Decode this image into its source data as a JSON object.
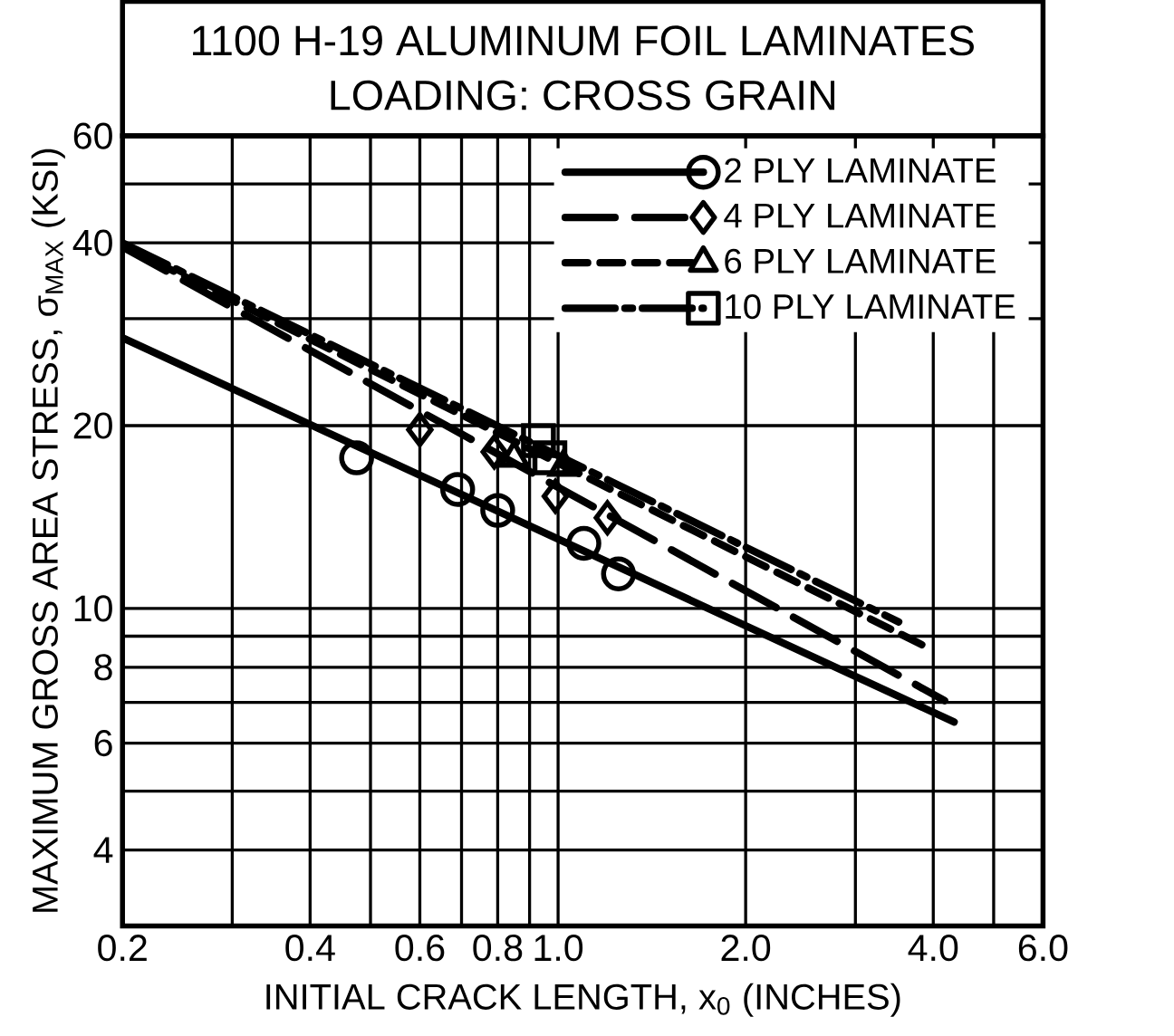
{
  "chart_data": {
    "type": "scatter",
    "title": "1100 H-19 ALUMINUM FOIL LAMINATES",
    "subtitle": "LOADING: CROSS GRAIN",
    "xlabel": "INITIAL CRACK LENGTH, x$_{0}$ (INCHES)",
    "ylabel": "MAXIMUM GROSS AREA STRESS, σ$_{MAX}$ (KSI)",
    "log": "xy",
    "grid": true,
    "legend": "top right",
    "xlim": [
      0.2,
      6.0
    ],
    "ylim": [
      3,
      60
    ],
    "xticks": [
      {
        "value": 0.2,
        "label": "0.2"
      },
      {
        "value": 0.3,
        "label": null
      },
      {
        "value": 0.4,
        "label": "0.4"
      },
      {
        "value": 0.5,
        "label": null
      },
      {
        "value": 0.6,
        "label": "0.6"
      },
      {
        "value": 0.7,
        "label": null
      },
      {
        "value": 0.8,
        "label": "0.8"
      },
      {
        "value": 0.9,
        "label": null
      },
      {
        "value": 1.0,
        "label": "1.0"
      },
      {
        "value": 2.0,
        "label": "2.0"
      },
      {
        "value": 3.0,
        "label": null
      },
      {
        "value": 4.0,
        "label": "4.0"
      },
      {
        "value": 5.0,
        "label": null
      },
      {
        "value": 6.0,
        "label": "6.0"
      }
    ],
    "yticks": [
      4,
      {
        "value": 5,
        "label": null
      },
      6,
      {
        "value": 7,
        "label": null
      },
      8,
      {
        "value": 9,
        "label": null
      },
      10,
      20,
      {
        "value": 30,
        "label": null
      },
      40,
      {
        "value": 50,
        "label": null
      },
      60
    ],
    "series": [
      {
        "type": "scatter",
        "marker": "circle",
        "color": "#000000",
        "x": [
          0.475,
          0.69,
          0.8,
          1.1,
          1.25
        ],
        "values": [
          17.7,
          15.7,
          14.5,
          12.8,
          11.4
        ]
      },
      {
        "type": "scatter",
        "marker": "diamond",
        "color": "#000000",
        "x": [
          0.6,
          0.79,
          0.99,
          1.2
        ],
        "values": [
          19.7,
          18.1,
          15.3,
          14.1
        ]
      },
      {
        "type": "scatter",
        "marker": "triangle",
        "color": "#000000",
        "x": [
          0.85,
          1.02
        ],
        "values": [
          17.7,
          17.1
        ]
      },
      {
        "type": "scatter",
        "marker": "square",
        "color": "#000000",
        "x": [
          0.93,
          0.97
        ],
        "values": [
          18.9,
          17.7
        ]
      },
      {
        "type": "line",
        "name": "2 PLY LAMINATE",
        "line_style": "solid",
        "color": "#000000",
        "x": [
          0.2,
          4.32
        ],
        "values": [
          27.9,
          6.5
        ]
      },
      {
        "type": "line",
        "name": "4 PLY LAMINATE",
        "line_style": "long dashed",
        "color": "#000000",
        "x": [
          0.2,
          4.17
        ],
        "values": [
          39.4,
          7.05
        ]
      },
      {
        "type": "line",
        "name": "6 PLY LAMINATE",
        "line_style": "dashed",
        "color": "#000000",
        "x": [
          0.2,
          3.98
        ],
        "values": [
          39.6,
          8.55
        ]
      },
      {
        "type": "line",
        "name": "10 PLY LAMINATE",
        "line_style": "dash dot",
        "color": "#000000",
        "x": [
          0.2,
          3.52
        ],
        "values": [
          40.0,
          9.5
        ]
      }
    ]
  }
}
